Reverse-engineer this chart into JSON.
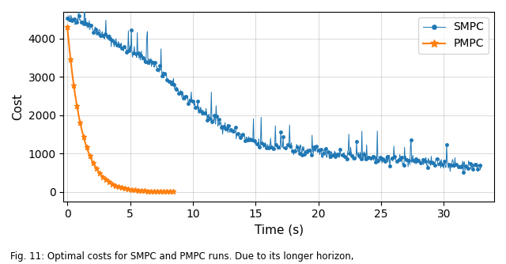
{
  "xlabel": "Time (s)",
  "ylabel": "Cost",
  "xlim": [
    -0.3,
    34
  ],
  "ylim": [
    -250,
    4700
  ],
  "yticks": [
    0,
    1000,
    2000,
    3000,
    4000
  ],
  "xticks": [
    0,
    5,
    10,
    15,
    20,
    25,
    30
  ],
  "smpc_color": "#1f77b4",
  "pmpc_color": "#ff7f0e",
  "legend_smpc": "SMPC",
  "legend_pmpc": "PMPC",
  "caption": "Fig. 11: Optimal costs for SMPC and PMPC runs. Due to its longer horizon,"
}
